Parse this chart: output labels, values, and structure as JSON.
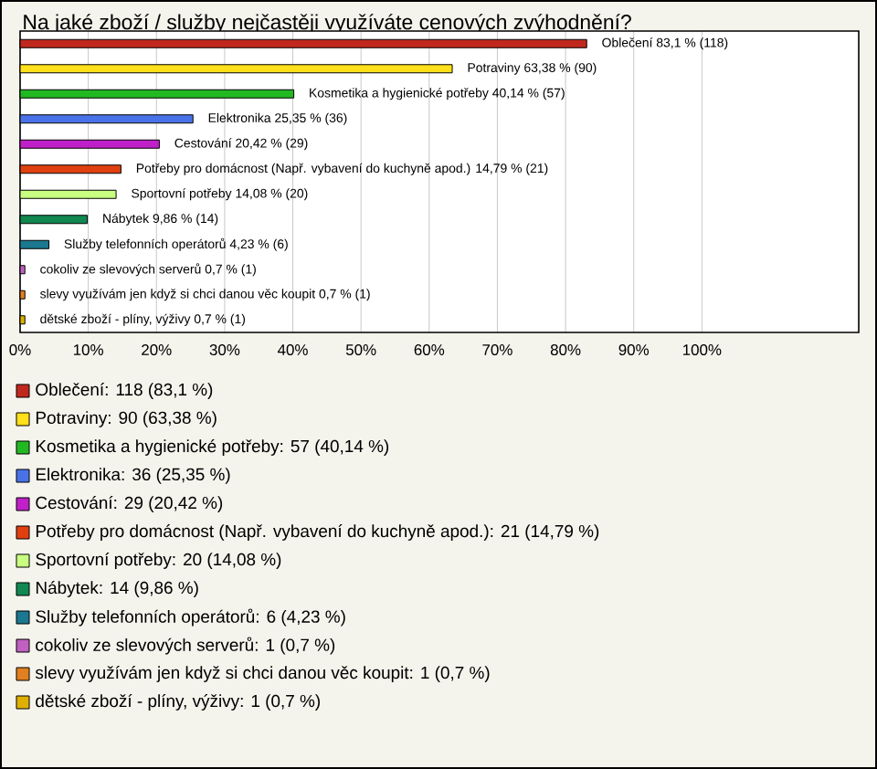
{
  "chart_data": {
    "type": "bar",
    "orientation": "horizontal",
    "title": "Na jaké zboží / služby nejčastěji využíváte cenových zvýhodnění?",
    "categories": [
      null,
      null,
      null,
      null,
      null,
      null,
      null,
      null,
      null,
      null,
      null,
      null
    ],
    "series": [
      {
        "name": "Oblečení: 118 (83,1 %)",
        "color": "#c0281e",
        "values": [
          83.1,
          null,
          null,
          null,
          null,
          null,
          null,
          null,
          null,
          null,
          null,
          null
        ],
        "value_labels": [
          "Oblečení 83,1 % (118)",
          null,
          null,
          null,
          null,
          null,
          null,
          null,
          null,
          null,
          null,
          null
        ]
      },
      {
        "name": "Potraviny: 90 (63,38 %)",
        "color": "#ffe01a",
        "values": [
          null,
          63.38,
          null,
          null,
          null,
          null,
          null,
          null,
          null,
          null,
          null,
          null
        ],
        "value_labels": [
          null,
          "Potraviny 63,38 % (90)",
          null,
          null,
          null,
          null,
          null,
          null,
          null,
          null,
          null,
          null
        ]
      },
      {
        "name": "Kosmetika a hygienické potřeby: 57 (40,14 %)",
        "color": "#22b822",
        "values": [
          null,
          null,
          40.14,
          null,
          null,
          null,
          null,
          null,
          null,
          null,
          null,
          null
        ],
        "value_labels": [
          null,
          null,
          "Kosmetika a hygienické potřeby 40,14 % (57)",
          null,
          null,
          null,
          null,
          null,
          null,
          null,
          null,
          null
        ]
      },
      {
        "name": "Elektronika: 36 (25,35 %)",
        "color": "#4a72e8",
        "values": [
          null,
          null,
          null,
          25.35,
          null,
          null,
          null,
          null,
          null,
          null,
          null,
          null
        ],
        "value_labels": [
          null,
          null,
          null,
          "Elektronika 25,35 % (36)",
          null,
          null,
          null,
          null,
          null,
          null,
          null,
          null
        ]
      },
      {
        "name": "Cestování: 29 (20,42 %)",
        "color": "#c020c8",
        "values": [
          null,
          null,
          null,
          null,
          20.42,
          null,
          null,
          null,
          null,
          null,
          null,
          null
        ],
        "value_labels": [
          null,
          null,
          null,
          null,
          "Cestování 20,42 % (29)",
          null,
          null,
          null,
          null,
          null,
          null,
          null
        ]
      },
      {
        "name": "Potřeby pro domácnost (Např. vybavení do kuchyně apod.): 21 (14,79 %)",
        "color": "#e04010",
        "values": [
          null,
          null,
          null,
          null,
          null,
          14.79,
          null,
          null,
          null,
          null,
          null,
          null
        ],
        "value_labels": [
          null,
          null,
          null,
          null,
          null,
          "Potřeby pro domácnost (Např. vybavení do kuchyně apod.) 14,79 % (21)",
          null,
          null,
          null,
          null,
          null,
          null
        ]
      },
      {
        "name": "Sportovní potřeby: 20 (14,08 %)",
        "color": "#c8ff80",
        "values": [
          null,
          null,
          null,
          null,
          null,
          null,
          14.08,
          null,
          null,
          null,
          null,
          null
        ],
        "value_labels": [
          null,
          null,
          null,
          null,
          null,
          null,
          "Sportovní potřeby 14,08 % (20)",
          null,
          null,
          null,
          null,
          null
        ]
      },
      {
        "name": "Nábytek: 14 (9,86 %)",
        "color": "#108850",
        "values": [
          null,
          null,
          null,
          null,
          null,
          null,
          null,
          9.86,
          null,
          null,
          null,
          null
        ],
        "value_labels": [
          null,
          null,
          null,
          null,
          null,
          null,
          null,
          "Nábytek 9,86 % (14)",
          null,
          null,
          null,
          null
        ]
      },
      {
        "name": "Služby telefonních operátorů: 6 (4,23 %)",
        "color": "#1a7890",
        "values": [
          null,
          null,
          null,
          null,
          null,
          null,
          null,
          null,
          4.23,
          null,
          null,
          null
        ],
        "value_labels": [
          null,
          null,
          null,
          null,
          null,
          null,
          null,
          null,
          "Služby telefonních operátorů 4,23 % (6)",
          null,
          null,
          null
        ]
      },
      {
        "name": "cokoliv ze slevových serverů: 1 (0,7 %)",
        "color": "#c060c0",
        "values": [
          null,
          null,
          null,
          null,
          null,
          null,
          null,
          null,
          null,
          0.7,
          null,
          null
        ],
        "value_labels": [
          null,
          null,
          null,
          null,
          null,
          null,
          null,
          null,
          null,
          "cokoliv ze slevových serverů 0,7 % (1)",
          null,
          null
        ]
      },
      {
        "name": "slevy využívám jen když si chci danou věc koupit: 1 (0,7 %)",
        "color": "#e08020",
        "values": [
          null,
          null,
          null,
          null,
          null,
          null,
          null,
          null,
          null,
          null,
          0.7,
          null
        ],
        "value_labels": [
          null,
          null,
          null,
          null,
          null,
          null,
          null,
          null,
          null,
          null,
          "slevy využívám jen když si chci danou věc koupit 0,7 % (1)",
          null
        ]
      },
      {
        "name": "dětské zboží - plíny, výživy: 1 (0,7 %)",
        "color": "#e0b000",
        "values": [
          null,
          null,
          null,
          null,
          null,
          null,
          null,
          null,
          null,
          null,
          null,
          0.7
        ],
        "value_labels": [
          null,
          null,
          null,
          null,
          null,
          null,
          null,
          null,
          null,
          null,
          null,
          "dětské zboží - plíny, výživy 0,7 % (1)"
        ]
      }
    ],
    "xlim": [
      0,
      123
    ],
    "xticks": [
      {
        "value": 0,
        "label": "0%"
      },
      {
        "value": 10,
        "label": "10%"
      },
      {
        "value": 20,
        "label": "20%"
      },
      {
        "value": 30,
        "label": "30%"
      },
      {
        "value": 40,
        "label": "40%"
      },
      {
        "value": 50,
        "label": "50%"
      },
      {
        "value": 60,
        "label": "60%"
      },
      {
        "value": 70,
        "label": "70%"
      },
      {
        "value": 80,
        "label": "80%"
      },
      {
        "value": 90,
        "label": "90%"
      },
      {
        "value": 100,
        "label": "100%"
      }
    ],
    "grid": "x",
    "legend": "bottom"
  }
}
